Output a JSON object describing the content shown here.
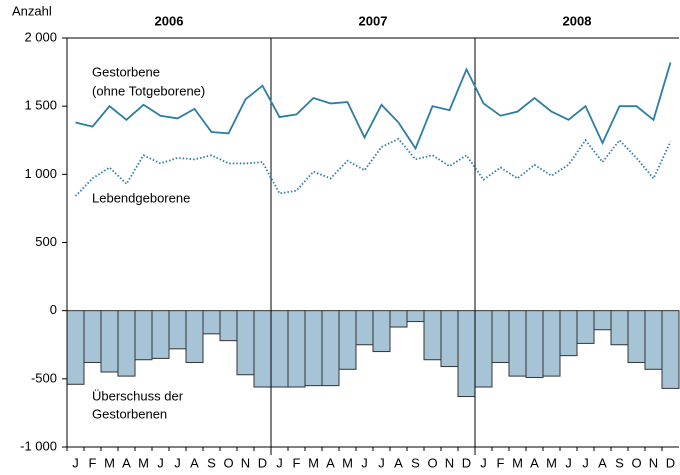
{
  "chart_data": {
    "type": "combo",
    "y_label": "Anzahl",
    "groups": [
      "2006",
      "2007",
      "2008"
    ],
    "categories": [
      "J",
      "F",
      "M",
      "A",
      "M",
      "J",
      "J",
      "A",
      "S",
      "O",
      "N",
      "D",
      "J",
      "F",
      "M",
      "A",
      "M",
      "J",
      "J",
      "A",
      "S",
      "O",
      "N",
      "D",
      "J",
      "F",
      "M",
      "A",
      "M",
      "J",
      "J",
      "A",
      "S",
      "O",
      "N",
      "D"
    ],
    "series": [
      {
        "type": "line",
        "style": "solid",
        "color": "#2b7ea1",
        "values": [
          1380,
          1350,
          1500,
          1400,
          1510,
          1430,
          1410,
          1480,
          1310,
          1300,
          1550,
          1650,
          1420,
          1440,
          1560,
          1520,
          1530,
          1270,
          1510,
          1380,
          1190,
          1500,
          1470,
          1770,
          1520,
          1430,
          1460,
          1560,
          1460,
          1400,
          1500,
          1230,
          1500,
          1500,
          1400,
          1820
        ]
      },
      {
        "type": "line",
        "style": "dotted",
        "color": "#2b7ea1",
        "values": [
          840,
          970,
          1050,
          930,
          1140,
          1080,
          1120,
          1110,
          1140,
          1080,
          1080,
          1090,
          860,
          880,
          1020,
          970,
          1100,
          1030,
          1200,
          1260,
          1110,
          1140,
          1060,
          1140,
          960,
          1050,
          970,
          1070,
          990,
          1070,
          1250,
          1090,
          1250,
          1120,
          970,
          1240
        ]
      },
      {
        "type": "bar",
        "color": "#a7c4d6",
        "values": [
          -540,
          -380,
          -450,
          -480,
          -360,
          -350,
          -280,
          -380,
          -170,
          -220,
          -470,
          -560,
          -560,
          -560,
          -550,
          -550,
          -430,
          -250,
          -300,
          -120,
          -80,
          -360,
          -410,
          -630,
          -560,
          -380,
          -480,
          -490,
          -480,
          -330,
          -240,
          -140,
          -250,
          -380,
          -430,
          -570
        ]
      }
    ],
    "annotations": [
      "Gestorbene",
      "(ohne Totgeborene)",
      "Lebendgeborene",
      "Überschuss der",
      "Gestorbenen"
    ],
    "ylim": [
      -1000,
      2000
    ],
    "yticks": [
      {
        "value": 2000,
        "label": "2 000"
      },
      {
        "value": 1500,
        "label": "1 500"
      },
      {
        "value": 1000,
        "label": "1 000"
      },
      500,
      0,
      -500,
      {
        "value": -1000,
        "label": "-1 000"
      }
    ]
  }
}
